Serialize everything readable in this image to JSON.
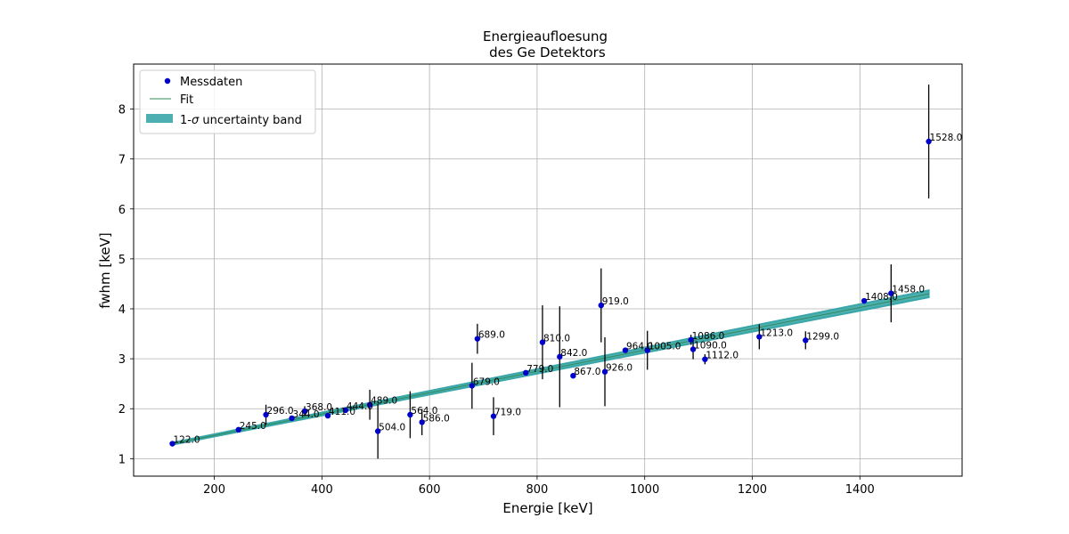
{
  "chart_data": {
    "type": "scatter",
    "title_line1": "Energieaufloesung",
    "title_line2": " des Ge Detektors",
    "xlabel": "Energie [keV]",
    "ylabel": "fwhm [keV]",
    "xlim": [
      50,
      1590
    ],
    "ylim": [
      0.65,
      8.9
    ],
    "xticks": [
      200,
      400,
      600,
      800,
      1000,
      1200,
      1400
    ],
    "yticks": [
      1,
      2,
      3,
      4,
      5,
      6,
      7,
      8
    ],
    "grid": true,
    "legend_position": "upper-left",
    "legend": {
      "data_label": "Messdaten",
      "fit_label": "Fit",
      "band_label_prefix": "1-",
      "band_label_sigma": "σ",
      "band_label_suffix": " uncertainty band"
    },
    "colors": {
      "points": "#0000cc",
      "fit": "#2e8b57",
      "band": "#3aa6a8",
      "errorbar": "#000000",
      "grid": "#b0b0b0"
    },
    "fit": {
      "x_range": [
        122,
        1528
      ],
      "y_at_start": 1.3,
      "y_at_end": 4.3,
      "band_halfwidth_at_start": 0.02,
      "band_halfwidth_at_end": 0.07
    },
    "points": [
      {
        "x": 122,
        "y": 1.3,
        "err": 0.0,
        "label": "122.0"
      },
      {
        "x": 245,
        "y": 1.58,
        "err": 0.0,
        "label": "245.0"
      },
      {
        "x": 296,
        "y": 1.88,
        "err": 0.2,
        "label": "296.0"
      },
      {
        "x": 344,
        "y": 1.81,
        "err": 0.0,
        "label": "344.0"
      },
      {
        "x": 368,
        "y": 1.95,
        "err": 0.1,
        "label": "368.0"
      },
      {
        "x": 411,
        "y": 1.86,
        "err": 0.05,
        "label": "411.0"
      },
      {
        "x": 444,
        "y": 1.97,
        "err": 0.0,
        "label": "444.0"
      },
      {
        "x": 489,
        "y": 2.08,
        "err": 0.3,
        "label": "489.0"
      },
      {
        "x": 504,
        "y": 1.55,
        "err": 0.55,
        "label": "504.0"
      },
      {
        "x": 564,
        "y": 1.88,
        "err": 0.47,
        "label": "564.0"
      },
      {
        "x": 586,
        "y": 1.73,
        "err": 0.26,
        "label": "586.0"
      },
      {
        "x": 679,
        "y": 2.46,
        "err": 0.46,
        "label": "679.0"
      },
      {
        "x": 689,
        "y": 3.4,
        "err": 0.3,
        "label": "689.0"
      },
      {
        "x": 719,
        "y": 1.85,
        "err": 0.38,
        "label": "719.0"
      },
      {
        "x": 779,
        "y": 2.72,
        "err": 0.0,
        "label": "779.0"
      },
      {
        "x": 810,
        "y": 3.33,
        "err": 0.74,
        "label": "810.0"
      },
      {
        "x": 842,
        "y": 3.04,
        "err": 1.01,
        "label": "842.0"
      },
      {
        "x": 867,
        "y": 2.66,
        "err": 0.05,
        "label": "867.0"
      },
      {
        "x": 919,
        "y": 4.07,
        "err": 0.74,
        "label": "919.0"
      },
      {
        "x": 926,
        "y": 2.74,
        "err": 0.69,
        "label": "926.0"
      },
      {
        "x": 964,
        "y": 3.17,
        "err": 0.0,
        "label": "964.0"
      },
      {
        "x": 1005,
        "y": 3.17,
        "err": 0.39,
        "label": "1005.0"
      },
      {
        "x": 1086,
        "y": 3.38,
        "err": 0.1,
        "label": "1086.0"
      },
      {
        "x": 1090,
        "y": 3.19,
        "err": 0.2,
        "label": "1090.0"
      },
      {
        "x": 1112,
        "y": 2.99,
        "err": 0.1,
        "label": "1112.0"
      },
      {
        "x": 1213,
        "y": 3.44,
        "err": 0.25,
        "label": "1213.0"
      },
      {
        "x": 1299,
        "y": 3.37,
        "err": 0.18,
        "label": "1299.0"
      },
      {
        "x": 1408,
        "y": 4.16,
        "err": 0.0,
        "label": "1408.0"
      },
      {
        "x": 1458,
        "y": 4.31,
        "err": 0.58,
        "label": "1458.0"
      },
      {
        "x": 1528,
        "y": 7.35,
        "err": 1.14,
        "label": "1528.0"
      }
    ]
  }
}
